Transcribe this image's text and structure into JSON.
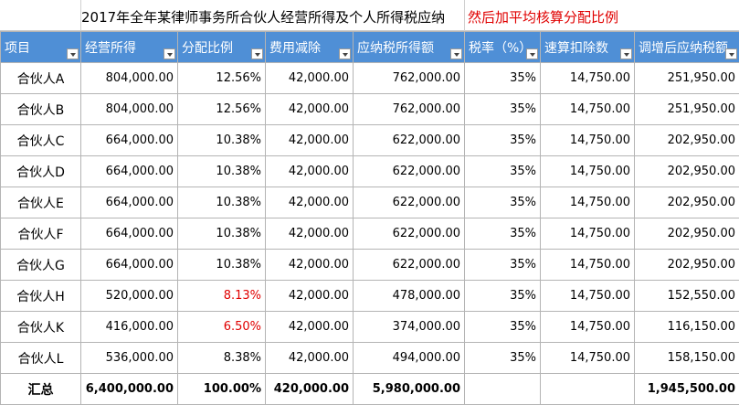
{
  "title": {
    "main": "2017年全年某律师事务所合伙人经营所得及个人所得税应纳",
    "note": "然后加平均核算分配比例"
  },
  "colors": {
    "header_bg": "#4f8fd6",
    "header_text": "#ffffff",
    "highlight_red": "#e00000"
  },
  "headers": [
    "项目",
    "经营所得",
    "分配比例",
    "费用减除",
    "应纳税所得额",
    "税率（%）",
    "速算扣除数",
    "调增后应纳税额"
  ],
  "rows": [
    {
      "name": "合伙人A",
      "income": "804,000.00",
      "ratio": "12.56%",
      "ratio_red": false,
      "deduct": "42,000.00",
      "taxable": "762,000.00",
      "rate": "35%",
      "quick": "14,750.00",
      "tax": "251,950.00"
    },
    {
      "name": "合伙人B",
      "income": "804,000.00",
      "ratio": "12.56%",
      "ratio_red": false,
      "deduct": "42,000.00",
      "taxable": "762,000.00",
      "rate": "35%",
      "quick": "14,750.00",
      "tax": "251,950.00"
    },
    {
      "name": "合伙人C",
      "income": "664,000.00",
      "ratio": "10.38%",
      "ratio_red": false,
      "deduct": "42,000.00",
      "taxable": "622,000.00",
      "rate": "35%",
      "quick": "14,750.00",
      "tax": "202,950.00"
    },
    {
      "name": "合伙人D",
      "income": "664,000.00",
      "ratio": "10.38%",
      "ratio_red": false,
      "deduct": "42,000.00",
      "taxable": "622,000.00",
      "rate": "35%",
      "quick": "14,750.00",
      "tax": "202,950.00"
    },
    {
      "name": "合伙人E",
      "income": "664,000.00",
      "ratio": "10.38%",
      "ratio_red": false,
      "deduct": "42,000.00",
      "taxable": "622,000.00",
      "rate": "35%",
      "quick": "14,750.00",
      "tax": "202,950.00"
    },
    {
      "name": "合伙人F",
      "income": "664,000.00",
      "ratio": "10.38%",
      "ratio_red": false,
      "deduct": "42,000.00",
      "taxable": "622,000.00",
      "rate": "35%",
      "quick": "14,750.00",
      "tax": "202,950.00"
    },
    {
      "name": "合伙人G",
      "income": "664,000.00",
      "ratio": "10.38%",
      "ratio_red": false,
      "deduct": "42,000.00",
      "taxable": "622,000.00",
      "rate": "35%",
      "quick": "14,750.00",
      "tax": "202,950.00"
    },
    {
      "name": "合伙人H",
      "income": "520,000.00",
      "ratio": "8.13%",
      "ratio_red": true,
      "deduct": "42,000.00",
      "taxable": "478,000.00",
      "rate": "35%",
      "quick": "14,750.00",
      "tax": "152,550.00"
    },
    {
      "name": "合伙人K",
      "income": "416,000.00",
      "ratio": "6.50%",
      "ratio_red": true,
      "deduct": "42,000.00",
      "taxable": "374,000.00",
      "rate": "35%",
      "quick": "14,750.00",
      "tax": "116,150.00"
    },
    {
      "name": "合伙人L",
      "income": "536,000.00",
      "ratio": "8.38%",
      "ratio_red": false,
      "deduct": "42,000.00",
      "taxable": "494,000.00",
      "rate": "35%",
      "quick": "14,750.00",
      "tax": "158,150.00"
    }
  ],
  "total": {
    "name": "汇总",
    "income": "6,400,000.00",
    "ratio": "100.00%",
    "deduct": "420,000.00",
    "taxable": "5,980,000.00",
    "rate": "",
    "quick": "",
    "tax": "1,945,500.00"
  }
}
